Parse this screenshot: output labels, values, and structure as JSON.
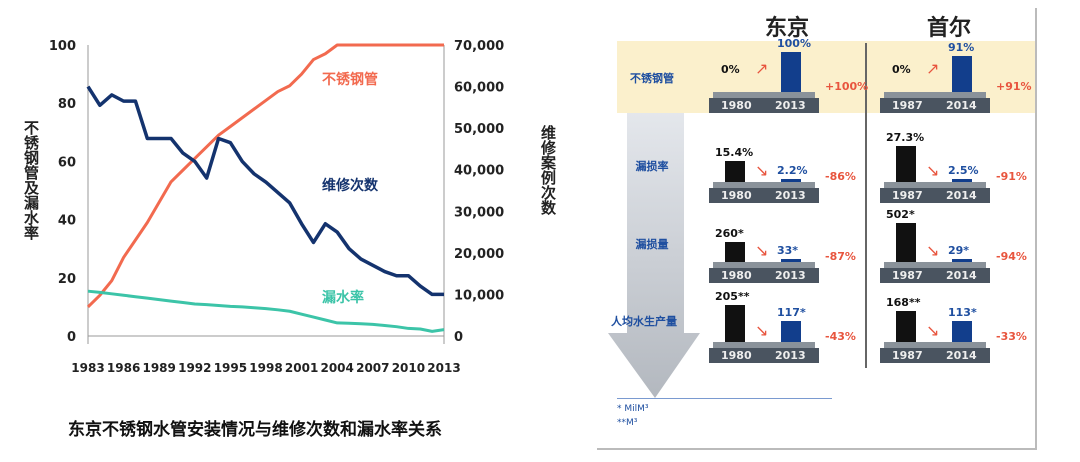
{
  "chart_data": [
    {
      "type": "line",
      "x": [
        1983,
        1984,
        1985,
        1986,
        1987,
        1988,
        1989,
        1990,
        1991,
        1992,
        1993,
        1994,
        1995,
        1996,
        1997,
        1998,
        1999,
        2000,
        2001,
        2002,
        2003,
        2004,
        2005,
        2006,
        2007,
        2008,
        2009,
        2010,
        2011,
        2012,
        2013
      ],
      "xticks": [
        "1983",
        "1986",
        "1989",
        "1992",
        "1995",
        "1998",
        "2001",
        "2004",
        "2007",
        "2010",
        "2013"
      ],
      "ylabel": "不锈钢管及漏水率",
      "y2label": "维修案例次数",
      "yticks": [
        "0",
        "20",
        "40",
        "60",
        "80",
        "100"
      ],
      "ylim": [
        0,
        100
      ],
      "y2ticks": [
        "0",
        "10,000",
        "20,000",
        "30,000",
        "40,000",
        "50,000",
        "60,000",
        "70,000"
      ],
      "y2lim": [
        0,
        70000
      ],
      "series": [
        {
          "name": "不锈钢管",
          "axis": "left",
          "color": "#f26a4f",
          "values": [
            10,
            14,
            19,
            27,
            33,
            39,
            46,
            53,
            57,
            61,
            65,
            69,
            72,
            75,
            78,
            81,
            84,
            86,
            90,
            95,
            97,
            100,
            100,
            100,
            100,
            100,
            100,
            100,
            100,
            100,
            100
          ]
        },
        {
          "name": "维修次数",
          "axis": "right",
          "color": "#14336e",
          "values": [
            60000,
            55500,
            58000,
            56500,
            56500,
            47500,
            47500,
            47500,
            44000,
            42000,
            38000,
            47500,
            46500,
            42000,
            39000,
            37000,
            34500,
            32000,
            27000,
            22500,
            27000,
            25000,
            21000,
            18500,
            17000,
            15500,
            14500,
            14500,
            12000,
            10000,
            10000
          ]
        },
        {
          "name": "漏水率",
          "axis": "left",
          "color": "#3cc4a8",
          "values": [
            15.4,
            15,
            14.5,
            14,
            13.5,
            13,
            12.5,
            12,
            11.5,
            11,
            10.8,
            10.5,
            10.2,
            10,
            9.7,
            9.4,
            9,
            8.5,
            7.5,
            6.5,
            5.5,
            4.5,
            4.4,
            4.2,
            4,
            3.6,
            3.2,
            2.6,
            2.4,
            1.6,
            2.2
          ]
        }
      ],
      "title": "东京不锈钢水管安装情况与维修次数和漏水率关系"
    }
  ],
  "infographic": {
    "cities": [
      "东京",
      "首尔"
    ],
    "rows": [
      {
        "label": "不锈钢管",
        "blocks": [
          {
            "years": [
              "1980",
              "2013"
            ],
            "v1": "0%",
            "v2": "100%",
            "h1": 0,
            "h2": 100,
            "change": "+100%",
            "up": true
          },
          {
            "years": [
              "1987",
              "2014"
            ],
            "v1": "0%",
            "v2": "91%",
            "h1": 0,
            "h2": 91,
            "change": "+91%",
            "up": true
          }
        ]
      },
      {
        "label": "漏损率",
        "blocks": [
          {
            "years": [
              "1980",
              "2013"
            ],
            "v1": "15.4%",
            "v2": "2.2%",
            "h1": 15.4,
            "h2": 2.2,
            "change": "-86%"
          },
          {
            "years": [
              "1987",
              "2014"
            ],
            "v1": "27.3%",
            "v2": "2.5%",
            "h1": 27.3,
            "h2": 2.5,
            "change": "-91%"
          }
        ]
      },
      {
        "label": "漏损量",
        "blocks": [
          {
            "years": [
              "1980",
              "2013"
            ],
            "v1": "260*",
            "v2": "33*",
            "h1": 260,
            "h2": 33,
            "change": "-87%"
          },
          {
            "years": [
              "1987",
              "2014"
            ],
            "v1": "502*",
            "v2": "29*",
            "h1": 502,
            "h2": 29,
            "change": "-94%"
          }
        ]
      },
      {
        "label": "人均水生产量",
        "blocks": [
          {
            "years": [
              "1980",
              "2013"
            ],
            "v1": "205**",
            "v2": "117*",
            "h1": 205,
            "h2": 117,
            "change": "-43%"
          },
          {
            "years": [
              "1987",
              "2014"
            ],
            "v1": "168**",
            "v2": "113*",
            "h1": 168,
            "h2": 113,
            "change": "-33%"
          }
        ]
      }
    ],
    "footnotes": [
      "*  MilM³",
      "**M³"
    ]
  }
}
